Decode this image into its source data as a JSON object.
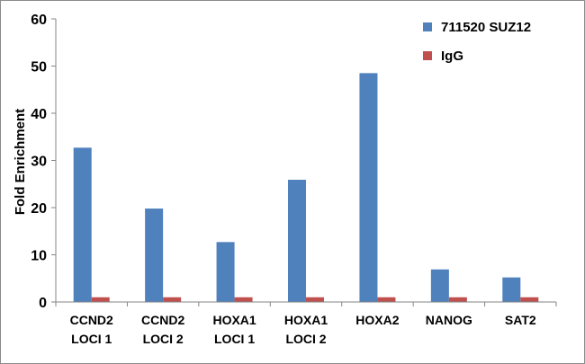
{
  "chart_data": {
    "type": "bar",
    "categories": [
      [
        "CCND2",
        "LOCI 1"
      ],
      [
        "CCND2",
        "LOCI 2"
      ],
      [
        "HOXA1",
        "LOCI 1"
      ],
      [
        "HOXA1",
        "LOCI 2"
      ],
      [
        "HOXA2"
      ],
      [
        "NANOG"
      ],
      [
        "SAT2"
      ]
    ],
    "series": [
      {
        "name": "711520 SUZ12",
        "color": "#4f81bd",
        "values": [
          32.7,
          19.8,
          12.7,
          25.9,
          48.5,
          6.9,
          5.2
        ]
      },
      {
        "name": "IgG",
        "color": "#c0504d",
        "values": [
          1,
          1,
          1,
          1,
          1,
          1,
          1
        ]
      }
    ],
    "ylabel": "Fold Enrichment",
    "xlabel": "",
    "title": "",
    "ylim": [
      0,
      60
    ],
    "yticks": [
      0,
      10,
      20,
      30,
      40,
      50,
      60
    ],
    "grid": false,
    "legend": "top-right"
  }
}
